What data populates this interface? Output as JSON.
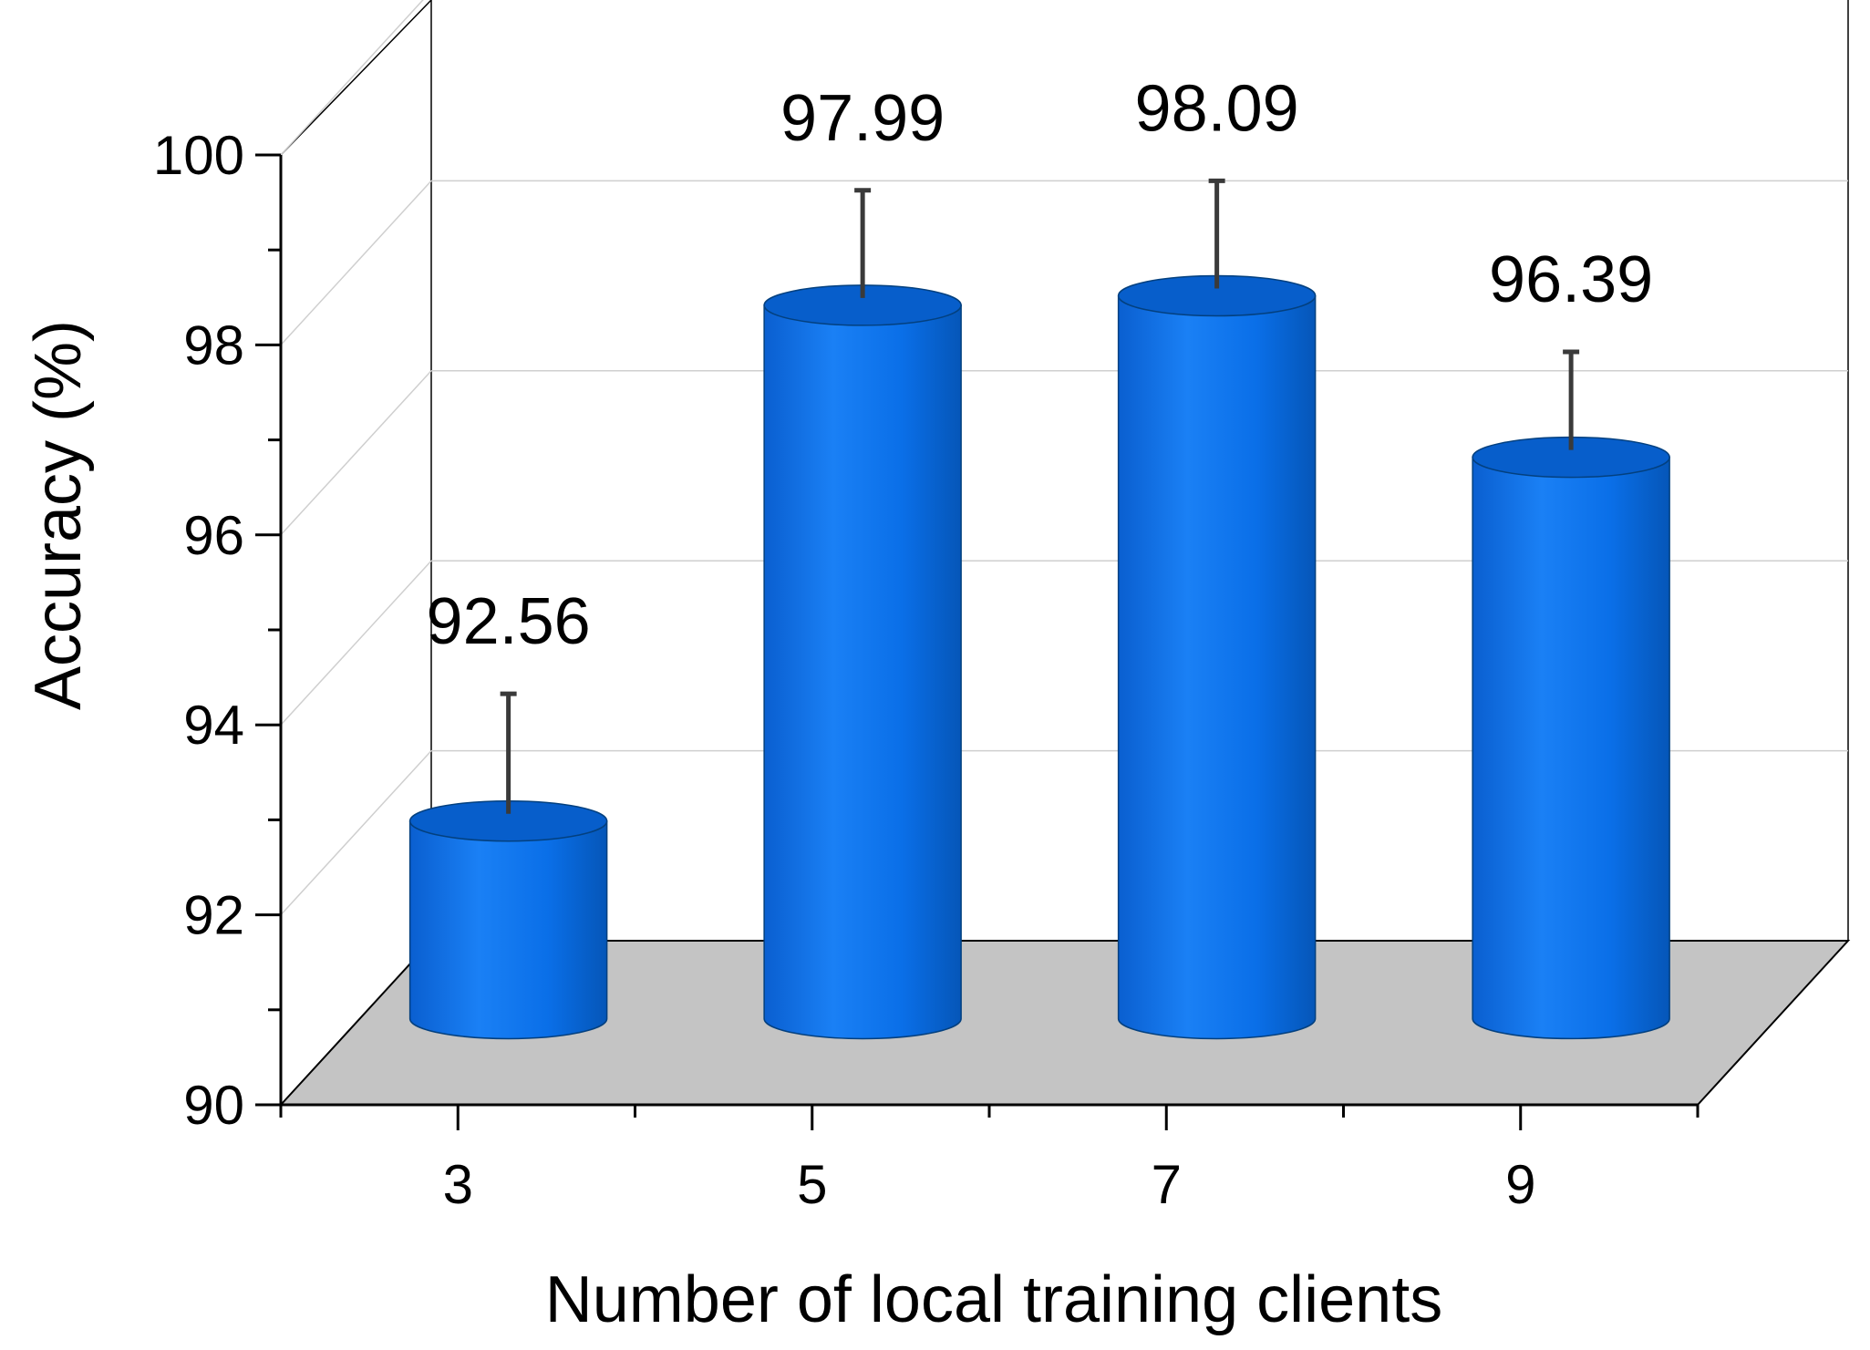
{
  "chart_data": {
    "type": "bar",
    "style": "3d-cylinder",
    "title": "",
    "xlabel": "Number of local training clients",
    "ylabel": "Accuracy (%)",
    "categories": [
      "3",
      "5",
      "7",
      "9"
    ],
    "values": [
      92.56,
      97.99,
      98.09,
      96.39
    ],
    "value_labels": [
      "92.56",
      "97.99",
      "98.09",
      "96.39"
    ],
    "error_upper": [
      93.9,
      99.2,
      99.3,
      97.5
    ],
    "ylim": [
      90,
      100
    ],
    "yticks": [
      90,
      92,
      94,
      96,
      98,
      100
    ],
    "ytick_labels": [
      "90",
      "92",
      "94",
      "96",
      "98",
      "100"
    ],
    "grid": true,
    "legend": "none",
    "colors": {
      "bar": "#0a6fe8",
      "bar_top": "#075ecb",
      "floor": "#c4c4c4",
      "error_bar": "#3a3a3a"
    }
  }
}
